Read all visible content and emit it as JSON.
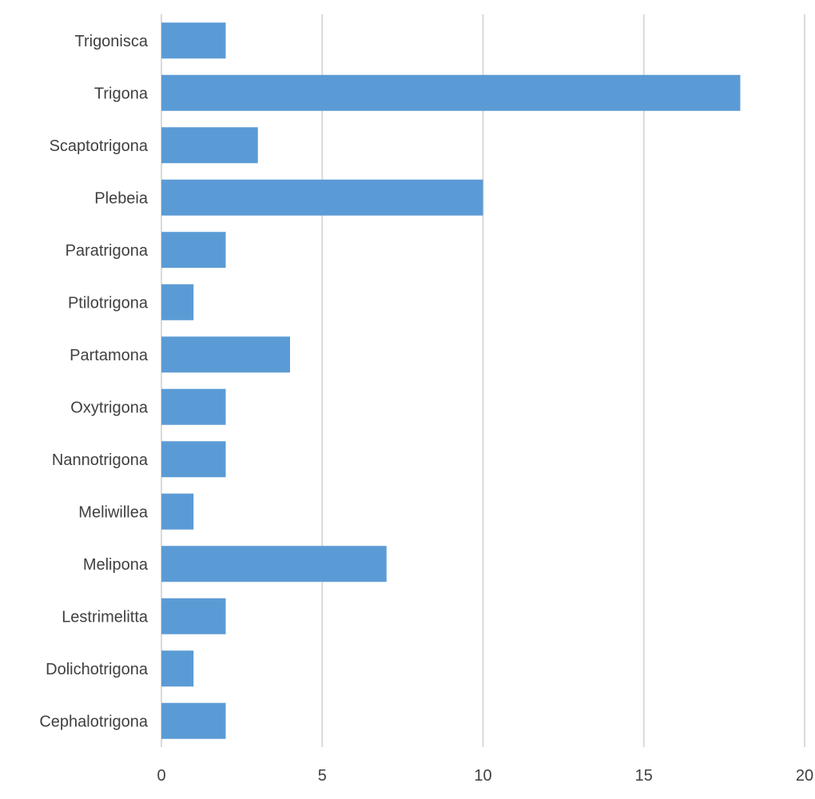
{
  "chart_data": {
    "type": "bar",
    "orientation": "horizontal",
    "title": "",
    "xlabel": "",
    "ylabel": "",
    "categories": [
      "Trigonisca",
      "Trigona",
      "Scaptotrigona",
      "Plebeia",
      "Paratrigona",
      "Ptilotrigona",
      "Partamona",
      "Oxytrigona",
      "Nannotrigona",
      "Meliwillea",
      "Melipona",
      "Lestrimelitta",
      "Dolichotrigona",
      "Cephalotrigona"
    ],
    "values": [
      2,
      18,
      3,
      10,
      2,
      1,
      4,
      2,
      2,
      1,
      7,
      2,
      1,
      2
    ],
    "xlim": [
      0,
      20
    ],
    "xticks": [
      0,
      5,
      10,
      15,
      20
    ],
    "xtick_labels": [
      "0",
      "5",
      "10",
      "15",
      "20"
    ],
    "grid": "vertical",
    "legend": "none",
    "bar_color": "#5b9bd5",
    "grid_color": "#d9d9d9",
    "text_color": "#404040"
  }
}
